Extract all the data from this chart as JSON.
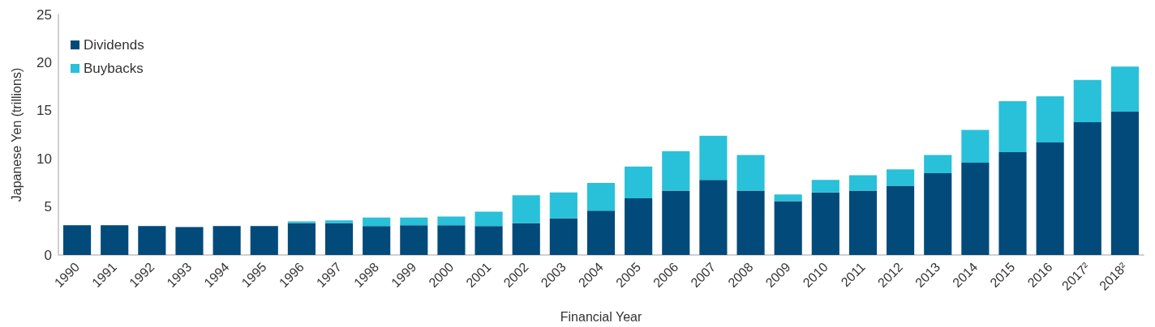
{
  "chart_data": {
    "type": "bar",
    "stacked": true,
    "xlabel": "Financial Year",
    "ylabel": "Japanese Yen (trillions)",
    "categories": [
      "1990",
      "1991",
      "1992",
      "1993",
      "1994",
      "1995",
      "1996",
      "1997",
      "1998",
      "1999",
      "2000",
      "2001",
      "2002",
      "2003",
      "2004",
      "2005",
      "2006",
      "2007",
      "2008",
      "2009",
      "2010",
      "2011",
      "2012",
      "2013",
      "2014",
      "2015",
      "2016",
      "2017²",
      "2018²"
    ],
    "series": [
      {
        "name": "Dividends",
        "color": "#014a7a",
        "values": [
          3.1,
          3.1,
          3.0,
          2.9,
          3.0,
          3.0,
          3.3,
          3.3,
          3.0,
          3.1,
          3.1,
          3.0,
          3.3,
          3.8,
          4.6,
          5.9,
          6.7,
          7.8,
          6.7,
          5.6,
          6.5,
          6.7,
          7.2,
          8.5,
          9.6,
          10.7,
          11.7,
          13.8,
          14.9
        ]
      },
      {
        "name": "Buybacks",
        "color": "#29c0d9",
        "values": [
          0,
          0,
          0,
          0,
          0,
          0,
          0.2,
          0.3,
          0.9,
          0.8,
          0.9,
          1.5,
          2.9,
          2.7,
          2.9,
          3.3,
          4.1,
          4.6,
          3.7,
          0.7,
          1.3,
          1.6,
          1.7,
          1.9,
          3.4,
          5.3,
          4.8,
          4.4,
          4.7
        ]
      }
    ],
    "ylim": [
      0,
      25
    ],
    "yticks": [
      0,
      5,
      10,
      15,
      20,
      25
    ],
    "grid": false,
    "legend": "top left"
  }
}
